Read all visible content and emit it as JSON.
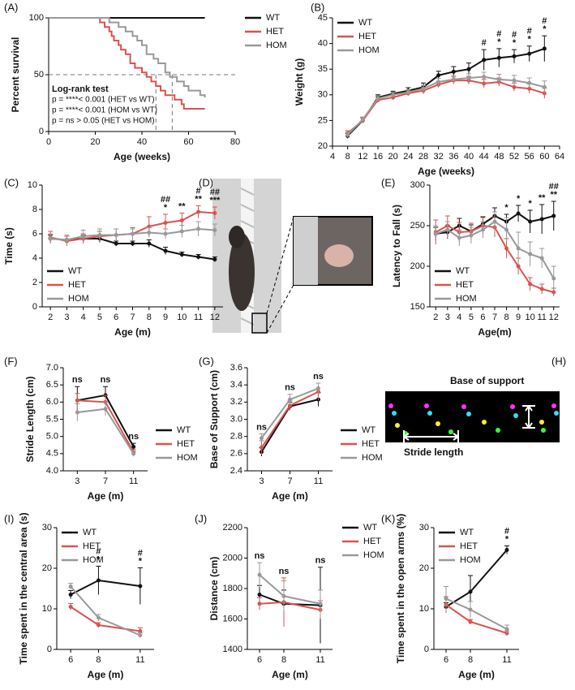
{
  "chart_data": [
    {
      "type": "step",
      "label": "(A)",
      "x_label": "Age (weeks)",
      "y_label": "Percent survival",
      "xlim": [
        0,
        80
      ],
      "ylim": [
        0,
        100
      ],
      "xticks": [
        0,
        20,
        40,
        60,
        80
      ],
      "yticks": [
        0,
        50,
        100
      ],
      "legend": "outside-top-right",
      "notes": [
        "Log-rank test",
        "p = ****< 0.001 (HET vs WT)",
        "p = ****< 0.001 (HOM vs WT)",
        "p = ns > 0.05 (HET vs HOM)"
      ],
      "reference": {
        "y": 50,
        "x": [
          46,
          53
        ]
      },
      "series": [
        {
          "name": "WT",
          "color": "#111111",
          "x": [
            0,
            67
          ],
          "values": [
            100,
            100
          ]
        },
        {
          "name": "HET",
          "color": "#d9534f",
          "x": [
            0,
            22,
            24,
            26,
            27,
            28,
            30,
            31,
            33,
            35,
            37,
            40,
            42,
            44,
            46,
            48,
            50,
            54,
            57,
            58,
            67
          ],
          "values": [
            100,
            96,
            92,
            88,
            84,
            80,
            76,
            72,
            68,
            60,
            56,
            52,
            48,
            44,
            40,
            36,
            32,
            28,
            24,
            20,
            20
          ]
        },
        {
          "name": "HOM",
          "color": "#999999",
          "x": [
            0,
            26,
            30,
            33,
            36,
            38,
            40,
            42,
            45,
            47,
            50,
            52,
            55,
            58,
            60,
            65,
            67
          ],
          "values": [
            100,
            96,
            92,
            88,
            84,
            80,
            76,
            68,
            64,
            60,
            52,
            48,
            44,
            40,
            36,
            32,
            30
          ]
        }
      ]
    },
    {
      "type": "line",
      "label": "(B)",
      "x_label": "Age  (weeks)",
      "y_label": "Weight (g)",
      "xlim": [
        4,
        64
      ],
      "ylim": [
        20,
        45
      ],
      "xticks": [
        4,
        8,
        12,
        16,
        20,
        24,
        28,
        32,
        36,
        40,
        44,
        48,
        52,
        56,
        60,
        64
      ],
      "yticks": [
        20,
        25,
        30,
        35,
        40,
        45
      ],
      "legend": "top-left",
      "x": [
        8,
        12,
        16,
        20,
        24,
        28,
        32,
        36,
        40,
        44,
        48,
        52,
        56,
        60
      ],
      "series": [
        {
          "name": "WT",
          "color": "#111111",
          "values": [
            22,
            25,
            29.5,
            30.2,
            30.8,
            31.5,
            33.8,
            34.5,
            35,
            36.8,
            37.2,
            37.5,
            38,
            39
          ],
          "errors": [
            0.5,
            0.5,
            0.5,
            0.5,
            0.6,
            0.8,
            0.8,
            1,
            1.2,
            2,
            1.8,
            1.3,
            1.5,
            2.5
          ]
        },
        {
          "name": "HET",
          "color": "#d9534f",
          "values": [
            22.5,
            25,
            29,
            29.5,
            30.3,
            30.8,
            32,
            32.8,
            32.8,
            32.2,
            32.5,
            31.5,
            31.2,
            30.3
          ],
          "errors": [
            0.5,
            0.5,
            0.5,
            0.5,
            0.5,
            0.6,
            0.6,
            0.7,
            0.8,
            0.8,
            0.8,
            0.8,
            0.9,
            1
          ]
        },
        {
          "name": "HOM",
          "color": "#999999",
          "values": [
            22.2,
            25.2,
            29.3,
            30,
            30.5,
            31.2,
            32.5,
            33,
            33.3,
            33.5,
            33,
            32.8,
            32.3,
            31.5
          ],
          "errors": [
            0.5,
            0.5,
            0.5,
            0.5,
            0.5,
            0.6,
            0.7,
            0.8,
            0.8,
            0.9,
            1,
            1,
            1,
            1.2
          ]
        }
      ],
      "annotations": [
        {
          "x": 44,
          "text": "#"
        },
        {
          "x": 48,
          "text": "*"
        },
        {
          "x": 48,
          "text": "#"
        },
        {
          "x": 52,
          "text": "*"
        },
        {
          "x": 52,
          "text": "#"
        },
        {
          "x": 56,
          "text": "*"
        },
        {
          "x": 56,
          "text": "#"
        },
        {
          "x": 60,
          "text": "*"
        },
        {
          "x": 60,
          "text": "#"
        }
      ]
    },
    {
      "type": "line",
      "label": "(C)",
      "x_label": "Age (m)",
      "y_label": "Time (s)",
      "xlim": [
        1.5,
        12.5
      ],
      "ylim": [
        0,
        10
      ],
      "xticks": [
        2,
        3,
        4,
        5,
        6,
        7,
        8,
        9,
        10,
        11,
        12
      ],
      "yticks": [
        0,
        2,
        4,
        6,
        8,
        10
      ],
      "legend": "bottom-left",
      "x": [
        2,
        3,
        4,
        5,
        6,
        7,
        8,
        9,
        10,
        11,
        12
      ],
      "series": [
        {
          "name": "WT",
          "color": "#111111",
          "values": [
            5.6,
            5.5,
            5.6,
            5.6,
            5.2,
            5.2,
            5.2,
            4.6,
            4.3,
            4.1,
            3.9
          ],
          "errors": [
            0.3,
            0.3,
            0.3,
            0.3,
            0.2,
            0.2,
            0.3,
            0.3,
            0.2,
            0.2,
            0.2
          ]
        },
        {
          "name": "HET",
          "color": "#d9534f",
          "values": [
            5.7,
            5.4,
            5.6,
            5.8,
            5.9,
            6,
            6.6,
            6.9,
            7.1,
            7.8,
            7.7
          ],
          "errors": [
            0.5,
            0.4,
            0.4,
            0.4,
            0.5,
            0.5,
            0.8,
            0.7,
            0.6,
            0.5,
            0.5
          ]
        },
        {
          "name": "HOM",
          "color": "#999999",
          "values": [
            5.6,
            5.5,
            5.8,
            5.9,
            5.9,
            6,
            6.1,
            6,
            6.2,
            6.4,
            6.3
          ],
          "errors": [
            0.4,
            0.4,
            0.5,
            0.5,
            0.5,
            0.4,
            0.4,
            0.4,
            0.5,
            0.6,
            0.5
          ]
        }
      ],
      "annotations": [
        {
          "x": 9,
          "text": "*"
        },
        {
          "x": 10,
          "text": "**"
        },
        {
          "x": 11,
          "text": "**"
        },
        {
          "x": 12,
          "text": "***"
        },
        {
          "x": 9,
          "text": "##"
        },
        {
          "x": 11,
          "text": "#"
        },
        {
          "x": 12,
          "text": "##"
        }
      ]
    },
    {
      "type": "line",
      "label": "(E)",
      "x_label": "Age(m)",
      "y_label": "Latency to Fall (s)",
      "xlim": [
        1.5,
        12.5
      ],
      "ylim": [
        150,
        300
      ],
      "xticks": [
        2,
        3,
        4,
        5,
        6,
        7,
        8,
        9,
        10,
        11,
        12
      ],
      "yticks": [
        150,
        200,
        250,
        300
      ],
      "legend": "bottom-left",
      "x": [
        2,
        3,
        4,
        5,
        6,
        7,
        8,
        9,
        10,
        11,
        12
      ],
      "series": [
        {
          "name": "WT",
          "color": "#111111",
          "values": [
            240,
            242,
            250,
            243,
            252,
            262,
            255,
            265,
            255,
            258,
            262
          ],
          "errors": [
            8,
            8,
            9,
            8,
            9,
            10,
            9,
            10,
            14,
            18,
            18
          ]
        },
        {
          "name": "HET",
          "color": "#d9534f",
          "values": [
            242,
            250,
            242,
            243,
            250,
            248,
            222,
            200,
            178,
            172,
            168
          ],
          "errors": [
            15,
            12,
            12,
            10,
            10,
            12,
            12,
            10,
            8,
            6,
            5
          ]
        },
        {
          "name": "HOM",
          "color": "#999999",
          "values": [
            240,
            245,
            235,
            238,
            245,
            255,
            245,
            222,
            215,
            210,
            185
          ],
          "errors": [
            10,
            10,
            10,
            10,
            10,
            12,
            15,
            20,
            15,
            12,
            15
          ]
        }
      ],
      "annotations": [
        {
          "x": 8,
          "text": "*"
        },
        {
          "x": 9,
          "text": "*"
        },
        {
          "x": 10,
          "text": "*"
        },
        {
          "x": 11,
          "text": "**"
        },
        {
          "x": 12,
          "text": "**"
        },
        {
          "x": 12,
          "text": "##"
        }
      ]
    },
    {
      "type": "line",
      "label": "(F)",
      "x_label": "Age (m)",
      "y_label": "Stride Length (cm)",
      "xlim": [
        1,
        13
      ],
      "ylim": [
        4,
        7
      ],
      "xticks": [
        3,
        7,
        11
      ],
      "yticks": [
        {
          "value": 4,
          "label": "4.0"
        },
        4.5,
        {
          "value": 5,
          "label": "5.0"
        },
        5.5,
        {
          "value": 6,
          "label": "6.0"
        },
        6.5,
        {
          "value": 7,
          "label": "7.0"
        }
      ],
      "legend": "outside-bottom-right",
      "x": [
        3,
        7,
        11
      ],
      "series": [
        {
          "name": "WT",
          "color": "#111111",
          "values": [
            6.05,
            6.2,
            4.7
          ],
          "errors": [
            0.4,
            0.25,
            0.1
          ]
        },
        {
          "name": "HET",
          "color": "#d9534f",
          "values": [
            6.05,
            6,
            4.55
          ],
          "errors": [
            0.2,
            0.2,
            0.08
          ]
        },
        {
          "name": "HOM",
          "color": "#999999",
          "values": [
            5.7,
            5.8,
            4.5
          ],
          "errors": [
            0.25,
            0.2,
            0.08
          ]
        }
      ],
      "annotations": [
        {
          "x": 3,
          "text": "ns"
        },
        {
          "x": 7,
          "text": "ns"
        },
        {
          "x": 11,
          "text": "ns"
        }
      ]
    },
    {
      "type": "line",
      "label": "(G)",
      "x_label": "Age (m)",
      "y_label": "Base of Support (cm)",
      "xlim": [
        1,
        13
      ],
      "ylim": [
        2.4,
        3.6
      ],
      "xticks": [
        3,
        7,
        11
      ],
      "yticks": [
        2.4,
        2.6,
        2.8,
        {
          "value": 3,
          "label": "3.0"
        },
        3.2,
        3.4,
        3.6
      ],
      "legend": "outside-bottom-right",
      "x": [
        3,
        7,
        11
      ],
      "series": [
        {
          "name": "WT",
          "color": "#111111",
          "values": [
            2.62,
            3.15,
            3.23
          ],
          "errors": [
            0.05,
            0.05,
            0.08
          ]
        },
        {
          "name": "HET",
          "color": "#d9534f",
          "values": [
            2.67,
            3.16,
            3.32
          ],
          "errors": [
            0.08,
            0.06,
            0.1
          ]
        },
        {
          "name": "HOM",
          "color": "#999999",
          "values": [
            2.78,
            3.23,
            3.36
          ],
          "errors": [
            0.05,
            0.06,
            0.06
          ]
        }
      ],
      "annotations": [
        {
          "x": 3,
          "text": "ns"
        },
        {
          "x": 7,
          "text": "ns"
        },
        {
          "x": 11,
          "text": "ns"
        }
      ]
    },
    {
      "type": "line",
      "label": "(I)",
      "x_label": "Age (m)",
      "y_label": "Time spent in the central area (s)",
      "xlim": [
        5,
        12
      ],
      "ylim": [
        0,
        30
      ],
      "xticks": [
        6,
        8,
        11
      ],
      "yticks": [
        0,
        10,
        20,
        30
      ],
      "legend": "top-left",
      "x": [
        6,
        8,
        11
      ],
      "series": [
        {
          "name": "WT",
          "color": "#111111",
          "values": [
            13.5,
            17,
            15.6
          ],
          "errors": [
            1,
            3.5,
            4.5
          ]
        },
        {
          "name": "HET",
          "color": "#d9534f",
          "values": [
            10.5,
            6,
            4.5
          ],
          "errors": [
            0.8,
            0.6,
            0.8
          ]
        },
        {
          "name": "HOM",
          "color": "#999999",
          "values": [
            15.5,
            7.8,
            3.5
          ],
          "errors": [
            0.8,
            0.8,
            0.6
          ]
        }
      ],
      "annotations": [
        {
          "x": 8,
          "text": "*"
        },
        {
          "x": 8,
          "text": "#"
        },
        {
          "x": 11,
          "text": "*"
        },
        {
          "x": 11,
          "text": "#"
        }
      ]
    },
    {
      "type": "line",
      "label": "(J)",
      "x_label": "Age (m)",
      "y_label": "Distance (cm)",
      "xlim": [
        5,
        12
      ],
      "ylim": [
        1400,
        2200
      ],
      "xticks": [
        6,
        8,
        11
      ],
      "yticks": [
        1400,
        1600,
        1800,
        2000,
        2200
      ],
      "legend": "outside-top-right",
      "x": [
        6,
        8,
        11
      ],
      "series": [
        {
          "name": "WT",
          "color": "#111111",
          "values": [
            1760,
            1700,
            1690
          ],
          "errors": [
            60,
            90,
            250
          ]
        },
        {
          "name": "HET",
          "color": "#d9534f",
          "values": [
            1700,
            1710,
            1660
          ],
          "errors": [
            40,
            160,
            60
          ]
        },
        {
          "name": "HOM",
          "color": "#999999",
          "values": [
            1890,
            1750,
            1700
          ],
          "errors": [
            80,
            100,
            90
          ]
        }
      ],
      "annotations": [
        {
          "x": 6,
          "text": "ns"
        },
        {
          "x": 8,
          "text": "ns"
        },
        {
          "x": 11,
          "text": "ns"
        }
      ]
    },
    {
      "type": "line",
      "label": "(K)",
      "x_label": "Age (m)",
      "y_label": "Time spent in the open arms (%)",
      "xlim": [
        5,
        12
      ],
      "ylim": [
        0,
        30
      ],
      "xticks": [
        6,
        8,
        11
      ],
      "yticks": [
        0,
        10,
        20,
        30
      ],
      "legend": "top-left",
      "x": [
        6,
        8,
        11
      ],
      "series": [
        {
          "name": "WT",
          "color": "#111111",
          "values": [
            10.5,
            14.2,
            24.5
          ],
          "errors": [
            1,
            4,
            1
          ]
        },
        {
          "name": "HET",
          "color": "#d9534f",
          "values": [
            11,
            6.8,
            4
          ],
          "errors": [
            2,
            0.6,
            0.6
          ]
        },
        {
          "name": "HOM",
          "color": "#999999",
          "values": [
            12.5,
            9.8,
            5
          ],
          "errors": [
            3,
            2,
            1
          ]
        }
      ],
      "annotations": [
        {
          "x": 11,
          "text": "*"
        },
        {
          "x": 11,
          "text": "#"
        }
      ]
    }
  ],
  "panels": {
    "D": {
      "label": "(D)"
    },
    "H": {
      "label": "(H)",
      "support": "Base of support",
      "stride": "Stride length"
    }
  }
}
